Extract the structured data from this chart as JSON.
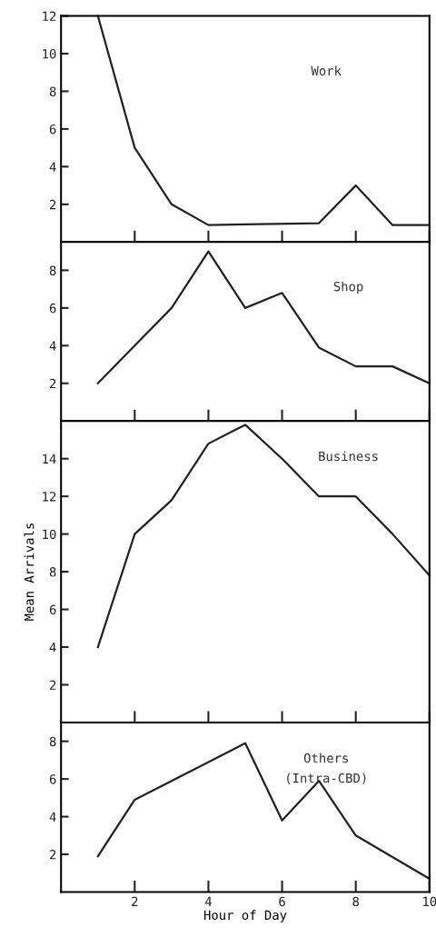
{
  "chart_data": [
    {
      "type": "line",
      "x": [
        1,
        2,
        3,
        4,
        7,
        8,
        9,
        10
      ],
      "series": [
        {
          "name": "Work",
          "color": "#222222",
          "values": [
            12,
            5,
            2,
            0.9,
            1,
            3,
            0.9,
            0.9
          ]
        }
      ],
      "xlim": [
        0,
        10
      ],
      "xticks": [
        {
          "value": 2,
          "label": null
        },
        {
          "value": 4,
          "label": null
        },
        {
          "value": 6,
          "label": null
        },
        {
          "value": 8,
          "label": null
        },
        {
          "value": 10,
          "label": null
        }
      ],
      "ylim": [
        0,
        12
      ],
      "yticks": [
        2,
        4,
        6,
        8,
        10,
        12
      ],
      "tick_labels": "y",
      "grid": false,
      "legend": false
    },
    {
      "type": "line",
      "x": [
        1,
        2,
        3,
        4,
        5,
        6,
        7,
        8,
        9,
        10
      ],
      "series": [
        {
          "name": "Shop",
          "color": "#222222",
          "values": [
            2,
            4,
            6,
            9,
            6,
            6.8,
            3.9,
            2.9,
            2.9,
            2
          ]
        }
      ],
      "xlim": [
        0,
        10
      ],
      "xticks": [
        {
          "value": 2,
          "label": null
        },
        {
          "value": 4,
          "label": null
        },
        {
          "value": 6,
          "label": null
        },
        {
          "value": 8,
          "label": null
        },
        {
          "value": 10,
          "label": null
        }
      ],
      "ylim": [
        0,
        9.5
      ],
      "yticks": [
        2,
        4,
        6,
        8
      ],
      "tick_labels": "y",
      "grid": false,
      "legend": false
    },
    {
      "type": "line",
      "x": [
        1,
        2,
        3,
        4,
        5,
        6,
        7,
        8,
        9,
        10
      ],
      "ylabel": "Mean Arrivals",
      "series": [
        {
          "name": "Business",
          "color": "#222222",
          "values": [
            4,
            10,
            11.8,
            14.8,
            15.8,
            14,
            12,
            12,
            10,
            7.8
          ]
        }
      ],
      "xlim": [
        0,
        10
      ],
      "xticks": [
        {
          "value": 2,
          "label": null
        },
        {
          "value": 4,
          "label": null
        },
        {
          "value": 6,
          "label": null
        },
        {
          "value": 8,
          "label": null
        },
        {
          "value": 10,
          "label": null
        }
      ],
      "ylim": [
        0,
        16
      ],
      "yticks": [
        2,
        4,
        6,
        8,
        10,
        12,
        14
      ],
      "tick_labels": "y",
      "grid": false,
      "legend": false
    },
    {
      "type": "line",
      "x": [
        1,
        2,
        5,
        6,
        7,
        8,
        10
      ],
      "xlabel": "Hour of Day",
      "series": [
        {
          "name": "Others\n(Intra-CBD)",
          "color": "#222222",
          "values": [
            1.9,
            4.9,
            7.9,
            3.8,
            5.9,
            3,
            0.7
          ]
        }
      ],
      "xlim": [
        0,
        10
      ],
      "xticks": [
        2,
        4,
        6,
        8,
        10
      ],
      "ylim": [
        0,
        9
      ],
      "yticks": [
        2,
        4,
        6,
        8
      ],
      "grid": false,
      "legend": false
    }
  ]
}
